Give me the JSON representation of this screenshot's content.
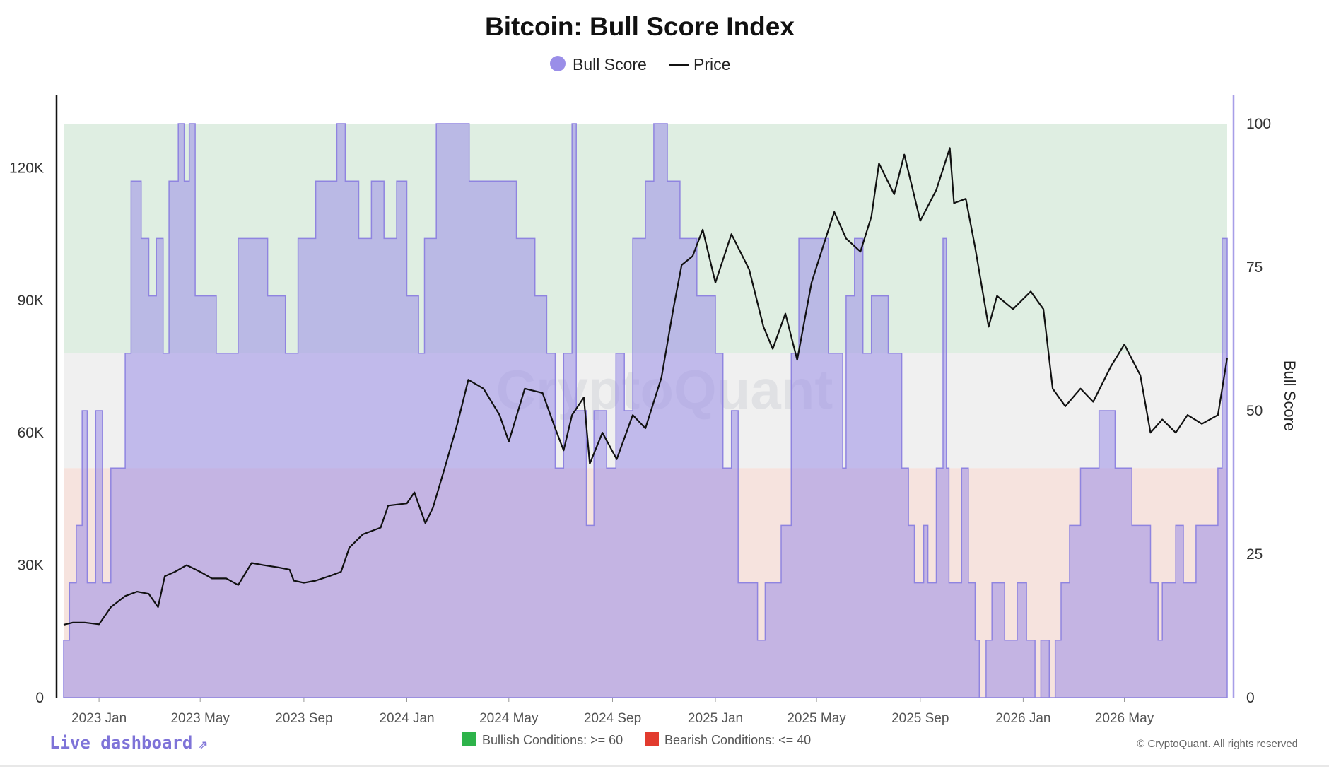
{
  "colors": {
    "bull_score_fill": "#9a8ee8",
    "bull_score_line": "#8f84e0",
    "price_line": "#111111",
    "bullish_zone": "#dfeee2",
    "neutral_zone": "#f0f0f0",
    "bearish_zone": "#f6e3de",
    "bullish_marker": "#2db34a",
    "bearish_marker": "#e23b2e",
    "link": "#7e73d8"
  },
  "footer": {
    "live_dashboard": "Live dashboard",
    "link_icon": "external-link-icon",
    "bullish_note": "Bullish Conditions: >= 60",
    "bearish_note": "Bearish Conditions: <= 40",
    "copyright": "© CryptoQuant. All rights reserved"
  },
  "watermark": "CryptoQuant",
  "chart_data": {
    "type": "area",
    "title": "Bitcoin: Bull Score Index",
    "legend": {
      "placement": "top-center",
      "items": [
        {
          "label": "Bull Score",
          "marker": "circle"
        },
        {
          "label": "Price",
          "marker": "line"
        }
      ]
    },
    "x_range": [
      "2022-11-20",
      "2026-08-31"
    ],
    "x_ticks": [
      "2023 Jan",
      "2023 May",
      "2023 Sep",
      "2024 Jan",
      "2024 May",
      "2024 Sep",
      "2025 Jan",
      "2025 May",
      "2025 Sep",
      "2026 Jan",
      "2026 May"
    ],
    "y_left": {
      "label": "",
      "range": [
        0,
        130000
      ],
      "ticks": [
        0,
        30000,
        60000,
        90000,
        120000
      ],
      "tick_labels": [
        "0",
        "30K",
        "60K",
        "90K",
        "120K"
      ]
    },
    "y_right": {
      "label": "Bull Score",
      "range": [
        0,
        100
      ],
      "ticks": [
        0,
        25,
        50,
        75,
        100
      ]
    },
    "zones": [
      {
        "name": "Bullish Conditions",
        "from": 60,
        "to": 100
      },
      {
        "name": "Bearish Conditions",
        "from": 0,
        "to": 40
      }
    ],
    "grid": false,
    "series": [
      {
        "name": "Bull Score",
        "axis": "right",
        "style": "step-area",
        "points": [
          [
            "2022-11-20",
            10
          ],
          [
            "2022-11-27",
            20
          ],
          [
            "2022-12-05",
            30
          ],
          [
            "2022-12-12",
            50
          ],
          [
            "2022-12-18",
            20
          ],
          [
            "2022-12-28",
            50
          ],
          [
            "2023-01-05",
            20
          ],
          [
            "2023-01-15",
            40
          ],
          [
            "2023-02-01",
            60
          ],
          [
            "2023-02-08",
            90
          ],
          [
            "2023-02-20",
            80
          ],
          [
            "2023-03-01",
            70
          ],
          [
            "2023-03-10",
            80
          ],
          [
            "2023-03-18",
            60
          ],
          [
            "2023-03-25",
            90
          ],
          [
            "2023-04-05",
            100
          ],
          [
            "2023-04-12",
            90
          ],
          [
            "2023-04-18",
            100
          ],
          [
            "2023-04-25",
            70
          ],
          [
            "2023-05-10",
            70
          ],
          [
            "2023-05-20",
            60
          ],
          [
            "2023-06-15",
            80
          ],
          [
            "2023-07-20",
            70
          ],
          [
            "2023-08-10",
            60
          ],
          [
            "2023-08-25",
            80
          ],
          [
            "2023-09-15",
            90
          ],
          [
            "2023-10-10",
            100
          ],
          [
            "2023-10-20",
            90
          ],
          [
            "2023-11-05",
            80
          ],
          [
            "2023-11-20",
            90
          ],
          [
            "2023-12-05",
            80
          ],
          [
            "2023-12-20",
            90
          ],
          [
            "2024-01-01",
            70
          ],
          [
            "2024-01-15",
            60
          ],
          [
            "2024-01-22",
            80
          ],
          [
            "2024-02-05",
            100
          ],
          [
            "2024-03-15",
            90
          ],
          [
            "2024-04-10",
            90
          ],
          [
            "2024-05-10",
            80
          ],
          [
            "2024-06-01",
            70
          ],
          [
            "2024-06-15",
            60
          ],
          [
            "2024-06-25",
            40
          ],
          [
            "2024-07-05",
            60
          ],
          [
            "2024-07-15",
            100
          ],
          [
            "2024-07-20",
            50
          ],
          [
            "2024-08-01",
            30
          ],
          [
            "2024-08-10",
            50
          ],
          [
            "2024-08-25",
            40
          ],
          [
            "2024-09-05",
            60
          ],
          [
            "2024-09-15",
            50
          ],
          [
            "2024-09-25",
            80
          ],
          [
            "2024-10-10",
            90
          ],
          [
            "2024-10-20",
            100
          ],
          [
            "2024-11-05",
            90
          ],
          [
            "2024-11-20",
            80
          ],
          [
            "2024-12-10",
            70
          ],
          [
            "2025-01-01",
            60
          ],
          [
            "2025-01-10",
            40
          ],
          [
            "2025-01-20",
            50
          ],
          [
            "2025-01-28",
            20
          ],
          [
            "2025-02-10",
            20
          ],
          [
            "2025-02-20",
            10
          ],
          [
            "2025-03-01",
            20
          ],
          [
            "2025-03-20",
            30
          ],
          [
            "2025-04-01",
            60
          ],
          [
            "2025-04-10",
            80
          ],
          [
            "2025-05-01",
            80
          ],
          [
            "2025-05-15",
            60
          ],
          [
            "2025-06-01",
            40
          ],
          [
            "2025-06-05",
            70
          ],
          [
            "2025-06-15",
            80
          ],
          [
            "2025-06-25",
            60
          ],
          [
            "2025-07-05",
            70
          ],
          [
            "2025-07-25",
            60
          ],
          [
            "2025-08-10",
            40
          ],
          [
            "2025-08-18",
            30
          ],
          [
            "2025-08-25",
            20
          ],
          [
            "2025-09-05",
            30
          ],
          [
            "2025-09-10",
            20
          ],
          [
            "2025-09-20",
            40
          ],
          [
            "2025-09-28",
            80
          ],
          [
            "2025-10-02",
            40
          ],
          [
            "2025-10-05",
            20
          ],
          [
            "2025-10-20",
            40
          ],
          [
            "2025-10-28",
            20
          ],
          [
            "2025-11-05",
            10
          ],
          [
            "2025-11-10",
            0
          ],
          [
            "2025-11-18",
            10
          ],
          [
            "2025-11-25",
            20
          ],
          [
            "2025-12-10",
            10
          ],
          [
            "2025-12-25",
            20
          ],
          [
            "2026-01-05",
            10
          ],
          [
            "2026-01-15",
            0
          ],
          [
            "2026-01-22",
            10
          ],
          [
            "2026-02-01",
            0
          ],
          [
            "2026-02-08",
            10
          ],
          [
            "2026-02-15",
            20
          ],
          [
            "2026-02-25",
            30
          ],
          [
            "2026-03-10",
            40
          ],
          [
            "2026-04-01",
            50
          ],
          [
            "2026-04-20",
            40
          ],
          [
            "2026-05-10",
            30
          ],
          [
            "2026-06-01",
            20
          ],
          [
            "2026-06-10",
            10
          ],
          [
            "2026-06-15",
            20
          ],
          [
            "2026-07-01",
            30
          ],
          [
            "2026-07-10",
            20
          ],
          [
            "2026-07-25",
            30
          ],
          [
            "2026-08-20",
            40
          ],
          [
            "2026-08-25",
            80
          ],
          [
            "2026-08-31",
            80
          ]
        ]
      },
      {
        "name": "Price",
        "axis": "left",
        "style": "line",
        "points": [
          [
            "2022-11-20",
            16500
          ],
          [
            "2022-12-01",
            17000
          ],
          [
            "2022-12-15",
            17000
          ],
          [
            "2023-01-01",
            16600
          ],
          [
            "2023-01-15",
            20500
          ],
          [
            "2023-02-01",
            23000
          ],
          [
            "2023-02-15",
            24000
          ],
          [
            "2023-03-01",
            23500
          ],
          [
            "2023-03-12",
            20500
          ],
          [
            "2023-03-20",
            27500
          ],
          [
            "2023-04-01",
            28500
          ],
          [
            "2023-04-15",
            30000
          ],
          [
            "2023-05-01",
            28500
          ],
          [
            "2023-05-15",
            27000
          ],
          [
            "2023-06-01",
            27000
          ],
          [
            "2023-06-15",
            25500
          ],
          [
            "2023-07-01",
            30500
          ],
          [
            "2023-07-15",
            30000
          ],
          [
            "2023-08-01",
            29500
          ],
          [
            "2023-08-15",
            29000
          ],
          [
            "2023-08-20",
            26500
          ],
          [
            "2023-09-01",
            26000
          ],
          [
            "2023-09-15",
            26500
          ],
          [
            "2023-10-01",
            27500
          ],
          [
            "2023-10-15",
            28500
          ],
          [
            "2023-10-25",
            34000
          ],
          [
            "2023-11-10",
            37000
          ],
          [
            "2023-12-01",
            38500
          ],
          [
            "2023-12-10",
            43500
          ],
          [
            "2024-01-01",
            44000
          ],
          [
            "2024-01-10",
            46500
          ],
          [
            "2024-01-23",
            39500
          ],
          [
            "2024-02-01",
            43000
          ],
          [
            "2024-02-15",
            52000
          ],
          [
            "2024-03-01",
            62000
          ],
          [
            "2024-03-14",
            72000
          ],
          [
            "2024-04-01",
            70000
          ],
          [
            "2024-04-20",
            64000
          ],
          [
            "2024-05-01",
            58000
          ],
          [
            "2024-05-20",
            70000
          ],
          [
            "2024-06-10",
            69000
          ],
          [
            "2024-06-25",
            61000
          ],
          [
            "2024-07-05",
            56000
          ],
          [
            "2024-07-15",
            64000
          ],
          [
            "2024-07-29",
            68000
          ],
          [
            "2024-08-05",
            53000
          ],
          [
            "2024-08-20",
            60000
          ],
          [
            "2024-09-06",
            54000
          ],
          [
            "2024-09-25",
            64000
          ],
          [
            "2024-10-10",
            61000
          ],
          [
            "2024-10-29",
            72500
          ],
          [
            "2024-11-12",
            88000
          ],
          [
            "2024-11-22",
            98000
          ],
          [
            "2024-12-05",
            100000
          ],
          [
            "2024-12-17",
            106000
          ],
          [
            "2025-01-01",
            94000
          ],
          [
            "2025-01-20",
            105000
          ],
          [
            "2025-02-10",
            97000
          ],
          [
            "2025-02-27",
            84000
          ],
          [
            "2025-03-10",
            79000
          ],
          [
            "2025-03-25",
            87000
          ],
          [
            "2025-04-08",
            76500
          ],
          [
            "2025-04-25",
            94000
          ],
          [
            "2025-05-10",
            103000
          ],
          [
            "2025-05-22",
            110000
          ],
          [
            "2025-06-05",
            104000
          ],
          [
            "2025-06-22",
            101000
          ],
          [
            "2025-07-05",
            109000
          ],
          [
            "2025-07-14",
            121000
          ],
          [
            "2025-08-01",
            114000
          ],
          [
            "2025-08-13",
            123000
          ],
          [
            "2025-09-01",
            108000
          ],
          [
            "2025-09-20",
            115000
          ],
          [
            "2025-10-06",
            124500
          ],
          [
            "2025-10-11",
            112000
          ],
          [
            "2025-10-25",
            113000
          ],
          [
            "2025-11-05",
            102000
          ],
          [
            "2025-11-21",
            84000
          ],
          [
            "2025-12-01",
            91000
          ],
          [
            "2025-12-20",
            88000
          ],
          [
            "2026-01-10",
            92000
          ],
          [
            "2026-01-25",
            88000
          ],
          [
            "2026-02-05",
            70000
          ],
          [
            "2026-02-20",
            66000
          ],
          [
            "2026-03-10",
            70000
          ],
          [
            "2026-03-25",
            67000
          ],
          [
            "2026-04-15",
            75000
          ],
          [
            "2026-05-01",
            80000
          ],
          [
            "2026-05-20",
            73000
          ],
          [
            "2026-06-01",
            60000
          ],
          [
            "2026-06-15",
            63000
          ],
          [
            "2026-07-01",
            60000
          ],
          [
            "2026-07-15",
            64000
          ],
          [
            "2026-08-01",
            62000
          ],
          [
            "2026-08-20",
            64000
          ],
          [
            "2026-08-31",
            77000
          ]
        ]
      }
    ]
  }
}
